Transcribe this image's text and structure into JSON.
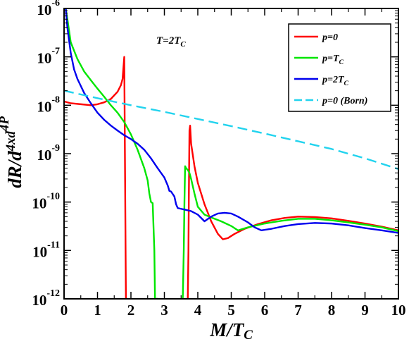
{
  "chart_data": {
    "type": "line",
    "title": "",
    "xlabel": "M/T_C",
    "ylabel": "dR/d^4xd^4P",
    "xlim": [
      0,
      10
    ],
    "ylim": [
      1e-12,
      1e-06
    ],
    "yscale": "log",
    "grid": false,
    "legend_position": "top-right",
    "annotation": "T=2T_C",
    "x_ticks": [
      0,
      1,
      2,
      3,
      4,
      5,
      6,
      7,
      8,
      9,
      10
    ],
    "y_ticks": [
      {
        "value": 1e-12,
        "mant": "10",
        "exp": "-12"
      },
      {
        "value": 1e-11,
        "mant": "10",
        "exp": "-11"
      },
      {
        "value": 1e-10,
        "mant": "10",
        "exp": "-10"
      },
      {
        "value": 1e-09,
        "mant": "10",
        "exp": "-9"
      },
      {
        "value": 1e-08,
        "mant": "10",
        "exp": "-8"
      },
      {
        "value": 1e-07,
        "mant": "10",
        "exp": "-7"
      },
      {
        "value": 1e-06,
        "mant": "10",
        "exp": "-6"
      }
    ],
    "series": [
      {
        "name": "p=0",
        "color": "#ff0000",
        "dash": "solid",
        "x": [
          0,
          0.2,
          0.5,
          0.8,
          1.0,
          1.2,
          1.4,
          1.6,
          1.7,
          1.75,
          1.8,
          1.82,
          1.84,
          1.85,
          1.86,
          1.88,
          1.9,
          null,
          3.7,
          3.72,
          3.73,
          3.75,
          3.77,
          3.8,
          3.9,
          4.0,
          4.2,
          4.4,
          4.6,
          4.75,
          4.9,
          5.1,
          5.4,
          5.8,
          6.2,
          6.6,
          7.0,
          7.5,
          8.0,
          8.5,
          9.0,
          9.5,
          10.0
        ],
        "y": [
          1.2e-08,
          1.1e-08,
          1.05e-08,
          1e-08,
          1.05e-08,
          1.15e-08,
          1.35e-08,
          1.9e-08,
          2.6e-08,
          3.5e-08,
          1e-07,
          1e-09,
          1e-11,
          1e-12,
          1e-12,
          1e-12,
          1e-12,
          null,
          1e-12,
          1e-11,
          1e-10,
          3e-09,
          3.8e-09,
          1.6e-09,
          5.5e-10,
          2.5e-10,
          9e-11,
          4e-11,
          2.2e-11,
          1.7e-11,
          1.8e-11,
          2.2e-11,
          2.8e-11,
          3.5e-11,
          4.2e-11,
          4.7e-11,
          5e-11,
          4.9e-11,
          4.6e-11,
          4.1e-11,
          3.6e-11,
          3.1e-11,
          2.6e-11
        ]
      },
      {
        "name": "p=T_C",
        "color": "#00e600",
        "dash": "solid",
        "x": [
          0.05,
          0.1,
          0.2,
          0.4,
          0.6,
          0.8,
          1.0,
          1.2,
          1.4,
          1.6,
          1.8,
          2.0,
          2.2,
          2.4,
          2.5,
          2.55,
          2.6,
          2.65,
          2.7,
          2.72,
          2.75,
          2.8,
          null,
          3.55,
          3.58,
          3.6,
          3.62,
          3.65,
          3.7,
          3.75,
          3.8,
          3.9,
          4.0,
          4.2,
          4.4,
          4.7,
          5.0,
          5.2,
          5.5,
          6.0,
          6.5,
          7.0,
          7.5,
          8.0,
          8.5,
          9.0,
          9.5,
          10.0
        ],
        "y": [
          1e-06,
          6e-07,
          2e-07,
          9e-08,
          5e-08,
          3.3e-08,
          2.2e-08,
          1.5e-08,
          1e-08,
          7e-09,
          4.5e-09,
          2.5e-09,
          1.2e-09,
          5e-10,
          2.8e-10,
          1.5e-10,
          1e-10,
          9.5e-11,
          1e-11,
          1e-12,
          1e-12,
          1e-12,
          null,
          1e-12,
          1e-11,
          1e-10,
          5.5e-10,
          5e-10,
          4.6e-10,
          4e-10,
          3e-10,
          1.5e-10,
          8e-11,
          5.5e-11,
          4.8e-11,
          4e-11,
          3.2e-11,
          2.6e-11,
          3e-11,
          3.6e-11,
          4.1e-11,
          4.5e-11,
          4.5e-11,
          4.2e-11,
          3.8e-11,
          3.4e-11,
          3e-11,
          2.5e-11
        ]
      },
      {
        "name": "p=2T_C",
        "color": "#0000ee",
        "dash": "solid",
        "x": [
          0.05,
          0.1,
          0.2,
          0.3,
          0.4,
          0.6,
          0.8,
          1.0,
          1.2,
          1.4,
          1.6,
          1.8,
          2.0,
          2.2,
          2.4,
          2.6,
          2.8,
          3.0,
          3.1,
          3.15,
          3.2,
          3.3,
          3.35,
          3.4,
          3.6,
          3.8,
          4.0,
          4.2,
          4.4,
          4.6,
          4.8,
          5.0,
          5.2,
          5.5,
          5.7,
          5.9,
          6.2,
          6.6,
          7.0,
          7.5,
          8.0,
          8.5,
          9.0,
          9.5,
          10.0
        ],
        "y": [
          1e-06,
          4e-07,
          1.2e-07,
          5.5e-08,
          3.5e-08,
          1.8e-08,
          1.1e-08,
          7e-09,
          5e-09,
          3.8e-09,
          3e-09,
          2.4e-09,
          2e-09,
          1.6e-09,
          1.2e-09,
          8e-10,
          5e-10,
          3.2e-10,
          2.2e-10,
          1.7e-10,
          1.65e-10,
          1.3e-10,
          9e-11,
          7.5e-11,
          7e-11,
          6.5e-11,
          5.5e-11,
          4e-11,
          5e-11,
          5.8e-11,
          6e-11,
          5.8e-11,
          5e-11,
          3.8e-11,
          3e-11,
          2.6e-11,
          2.8e-11,
          3.2e-11,
          3.5e-11,
          3.7e-11,
          3.6e-11,
          3.3e-11,
          2.9e-11,
          2.6e-11,
          2.3e-11
        ]
      },
      {
        "name": "p=0 (Born)",
        "color": "#22d3ee",
        "dash": "dashed",
        "x": [
          0,
          1,
          2,
          3,
          4,
          5,
          6,
          7,
          8,
          9,
          10
        ],
        "y": [
          2e-08,
          1.4e-08,
          1e-08,
          7.3e-09,
          5.2e-09,
          3.7e-09,
          2.6e-09,
          1.8e-09,
          1.25e-09,
          8e-10,
          4.8e-10
        ]
      }
    ]
  }
}
